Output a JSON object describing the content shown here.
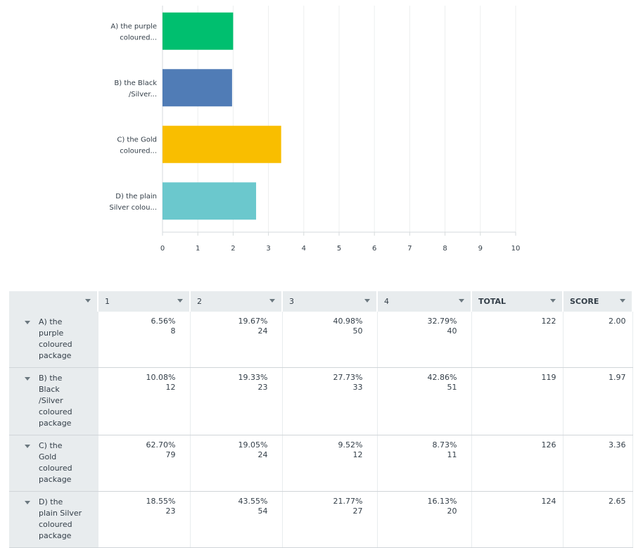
{
  "chart_data": {
    "type": "bar",
    "orientation": "horizontal",
    "categories": [
      "A) the purple coloured...",
      "B) the Black /Silver...",
      "C) the Gold coloured...",
      "D) the plain Silver colou..."
    ],
    "category_lines": [
      [
        "A) the purple",
        "coloured..."
      ],
      [
        "B) the Black",
        "/Silver..."
      ],
      [
        "C) the Gold",
        "coloured..."
      ],
      [
        "D) the plain",
        "Silver colou..."
      ]
    ],
    "values": [
      2.0,
      1.97,
      3.36,
      2.65
    ],
    "colors": [
      "#00bf6f",
      "#507cb6",
      "#f9be00",
      "#6bc8cd"
    ],
    "xlim": [
      0,
      10
    ],
    "xticks": [
      0,
      1,
      2,
      3,
      4,
      5,
      6,
      7,
      8,
      9,
      10
    ],
    "grid": true,
    "title": "",
    "xlabel": "",
    "ylabel": ""
  },
  "table": {
    "headers": [
      "",
      "1",
      "2",
      "3",
      "4",
      "TOTAL",
      "SCORE"
    ],
    "rows": [
      {
        "label": "A) the purple coloured package",
        "cells": [
          [
            "6.56%",
            "8"
          ],
          [
            "19.67%",
            "24"
          ],
          [
            "40.98%",
            "50"
          ],
          [
            "32.79%",
            "40"
          ]
        ],
        "total": "122",
        "score": "2.00"
      },
      {
        "label": "B) the Black /Silver coloured package",
        "cells": [
          [
            "10.08%",
            "12"
          ],
          [
            "19.33%",
            "23"
          ],
          [
            "27.73%",
            "33"
          ],
          [
            "42.86%",
            "51"
          ]
        ],
        "total": "119",
        "score": "1.97"
      },
      {
        "label": "C) the Gold coloured package",
        "cells": [
          [
            "62.70%",
            "79"
          ],
          [
            "19.05%",
            "24"
          ],
          [
            "9.52%",
            "12"
          ],
          [
            "8.73%",
            "11"
          ]
        ],
        "total": "126",
        "score": "3.36"
      },
      {
        "label": "D) the plain Silver coloured package",
        "cells": [
          [
            "18.55%",
            "23"
          ],
          [
            "43.55%",
            "54"
          ],
          [
            "21.77%",
            "27"
          ],
          [
            "16.13%",
            "20"
          ]
        ],
        "total": "124",
        "score": "2.65"
      }
    ]
  }
}
